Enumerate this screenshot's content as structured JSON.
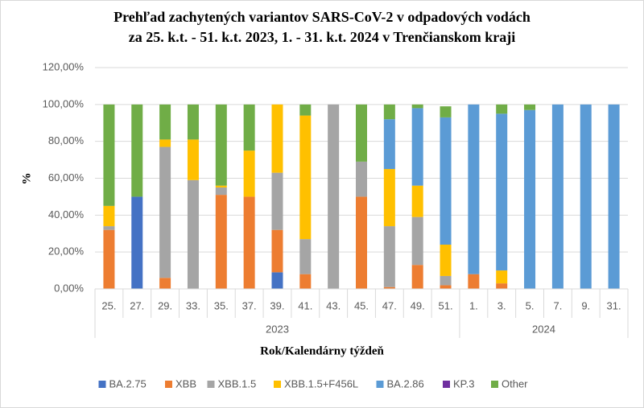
{
  "chart_data": {
    "type": "stacked_bar",
    "title": [
      "Prehľad zachytených variantov   SARS-CoV-2 v odpadových vodách",
      "za 25. k.t.  - 51. k.t. 2023, 1. - 31. k.t. 2024 v Trenčianskom kraji"
    ],
    "x_label": "Rok/Kalendárny týždeň",
    "y_label": "%",
    "groups": [
      {
        "name": "2023",
        "categories": [
          "25.",
          "27.",
          "29.",
          "33.",
          "35.",
          "37.",
          "39.",
          "41.",
          "43.",
          "45.",
          "47.",
          "49.",
          "51."
        ]
      },
      {
        "name": "2024",
        "categories": [
          "1.",
          "3.",
          "5.",
          "7.",
          "9.",
          "31."
        ]
      }
    ],
    "series": [
      {
        "name": "BA.2.75",
        "color": "#4472c4",
        "values": [
          0,
          50,
          0,
          0,
          0,
          0,
          9,
          0,
          0,
          0,
          0,
          0,
          0,
          0,
          0,
          0,
          0,
          0,
          0
        ]
      },
      {
        "name": "XBB",
        "color": "#ed7d31",
        "values": [
          32,
          0,
          6,
          0,
          51,
          50,
          23,
          8,
          0,
          50,
          1,
          13,
          2,
          8,
          3,
          0,
          0,
          0,
          0
        ]
      },
      {
        "name": "XBB.1.5",
        "color": "#a5a5a5",
        "values": [
          2,
          0,
          71,
          59,
          4,
          0,
          31,
          19,
          100,
          19,
          33,
          26,
          5,
          0,
          0,
          0,
          0,
          0,
          0
        ]
      },
      {
        "name": "XBB.1.5+F456L",
        "color": "#ffc000",
        "values": [
          11,
          0,
          4,
          22,
          1,
          25,
          37,
          67,
          0,
          0,
          31,
          17,
          17,
          0,
          7,
          0,
          0,
          0,
          0
        ]
      },
      {
        "name": "BA.2.86",
        "color": "#5b9bd5",
        "values": [
          0,
          0,
          0,
          0,
          0,
          0,
          0,
          0,
          0,
          0,
          27,
          42,
          69,
          92,
          85,
          97,
          100,
          100,
          100
        ]
      },
      {
        "name": "KP.3",
        "color": "#7030a0",
        "values": [
          0,
          0,
          0,
          0,
          0,
          0,
          0,
          0,
          0,
          0,
          0,
          0,
          0,
          0,
          0,
          0,
          0,
          0,
          0
        ]
      },
      {
        "name": "Other",
        "color": "#70ad47",
        "values": [
          55,
          50,
          19,
          19,
          44,
          25,
          0,
          6,
          0,
          31,
          8,
          2,
          6,
          0,
          5,
          3,
          0,
          0,
          0
        ]
      }
    ],
    "ylim": [
      0,
      120
    ],
    "yticks": [
      {
        "value": 0,
        "label": "0,00%"
      },
      {
        "value": 20,
        "label": "20,00%"
      },
      {
        "value": 40,
        "label": "40,00%"
      },
      {
        "value": 60,
        "label": "60,00%"
      },
      {
        "value": 80,
        "label": "80,00%"
      },
      {
        "value": 100,
        "label": "100,00%"
      },
      {
        "value": 120,
        "label": "120,00%"
      }
    ],
    "grid": true
  }
}
